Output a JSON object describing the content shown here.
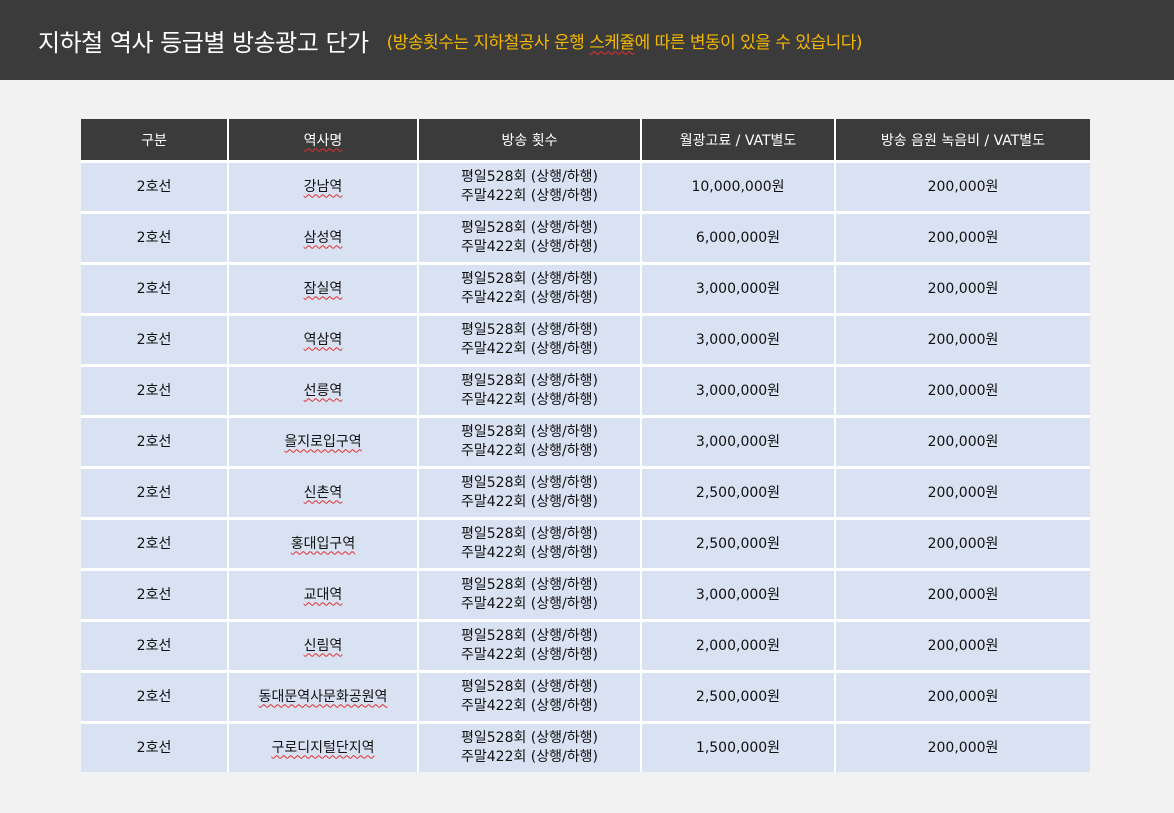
{
  "header": {
    "title": "지하철 역사 등급별 방송광고 단가",
    "note_prefix": "(방송횟수는 지하철공사 운행 ",
    "note_wavy": "스케쥴",
    "note_suffix": "에 따른 변동이 있을 수 있습니다)"
  },
  "table": {
    "columns": [
      "구분",
      "역사명",
      "방송 횟수",
      "월광고료 /  VAT별도",
      "방송 음원 녹음비 / VAT별도"
    ],
    "rows": [
      {
        "line": "2호선",
        "station": "강남역",
        "weekday": "평일528회 (상행/하행)",
        "weekend": "주말422회 (상행/하행)",
        "monthly_fee": "10,000,000원",
        "recording_fee": "200,000원"
      },
      {
        "line": "2호선",
        "station": "삼성역",
        "weekday": "평일528회 (상행/하행)",
        "weekend": "주말422회 (상행/하행)",
        "monthly_fee": "6,000,000원",
        "recording_fee": "200,000원"
      },
      {
        "line": "2호선",
        "station": "잠실역",
        "weekday": "평일528회 (상행/하행)",
        "weekend": "주말422회 (상행/하행)",
        "monthly_fee": "3,000,000원",
        "recording_fee": "200,000원"
      },
      {
        "line": "2호선",
        "station": "역삼역",
        "weekday": "평일528회 (상행/하행)",
        "weekend": "주말422회 (상행/하행)",
        "monthly_fee": "3,000,000원",
        "recording_fee": "200,000원"
      },
      {
        "line": "2호선",
        "station": "선릉역",
        "weekday": "평일528회 (상행/하행)",
        "weekend": "주말422회 (상행/하행)",
        "monthly_fee": "3,000,000원",
        "recording_fee": "200,000원"
      },
      {
        "line": "2호선",
        "station": "을지로입구역",
        "weekday": "평일528회 (상행/하행)",
        "weekend": "주말422회 (상행/하행)",
        "monthly_fee": "3,000,000원",
        "recording_fee": "200,000원"
      },
      {
        "line": "2호선",
        "station": "신촌역",
        "weekday": "평일528회 (상행/하행)",
        "weekend": "주말422회 (상행/하행)",
        "monthly_fee": "2,500,000원",
        "recording_fee": "200,000원"
      },
      {
        "line": "2호선",
        "station": "홍대입구역",
        "weekday": "평일528회 (상행/하행)",
        "weekend": "주말422회 (상행/하행)",
        "monthly_fee": "2,500,000원",
        "recording_fee": "200,000원"
      },
      {
        "line": "2호선",
        "station": "교대역",
        "weekday": "평일528회 (상행/하행)",
        "weekend": "주말422회 (상행/하행)",
        "monthly_fee": "3,000,000원",
        "recording_fee": "200,000원"
      },
      {
        "line": "2호선",
        "station": "신림역",
        "weekday": "평일528회 (상행/하행)",
        "weekend": "주말422회 (상행/하행)",
        "monthly_fee": "2,000,000원",
        "recording_fee": "200,000원"
      },
      {
        "line": "2호선",
        "station": "동대문역사문화공원역",
        "weekday": "평일528회 (상행/하행)",
        "weekend": "주말422회 (상행/하행)",
        "monthly_fee": "2,500,000원",
        "recording_fee": "200,000원"
      },
      {
        "line": "2호선",
        "station": "구로디지털단지역",
        "weekday": "평일528회 (상행/하행)",
        "weekend": "주말422회 (상행/하행)",
        "monthly_fee": "1,500,000원",
        "recording_fee": "200,000원"
      }
    ]
  }
}
